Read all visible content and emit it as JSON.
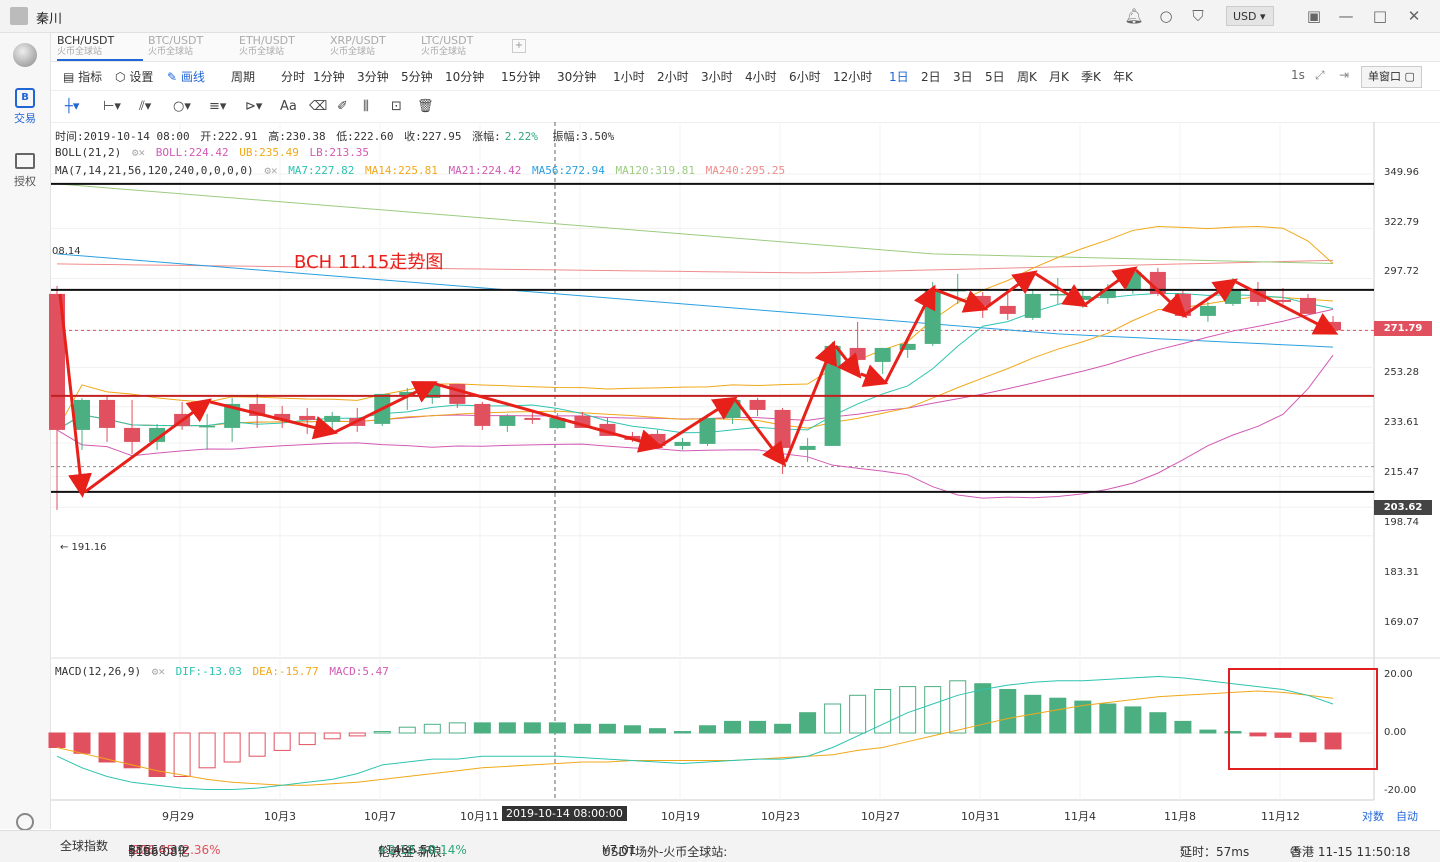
{
  "window": {
    "user": "秦川",
    "currency": "USD"
  },
  "sidebar": {
    "trade": "交易",
    "auth": "授权"
  },
  "tabs": [
    {
      "pair": "BCH/USDT",
      "exchange": "火币全球站",
      "active": true
    },
    {
      "pair": "BTC/USDT",
      "exchange": "火币全球站",
      "active": false
    },
    {
      "pair": "ETH/USDT",
      "exchange": "火币全球站",
      "active": false
    },
    {
      "pair": "XRP/USDT",
      "exchange": "火币全球站",
      "active": false
    },
    {
      "pair": "LTC/USDT",
      "exchange": "火币全球站",
      "active": false
    }
  ],
  "toolbar": {
    "indicator": "指标",
    "settings": "设置",
    "draw": "画线",
    "period": "周期",
    "timeframes": [
      "分时",
      "1分钟",
      "3分钟",
      "5分钟",
      "10分钟",
      "15分钟",
      "30分钟",
      "1小时",
      "2小时",
      "3小时",
      "4小时",
      "6小时",
      "12小时",
      "1日",
      "2日",
      "3日",
      "5日",
      "周K",
      "月K",
      "季K",
      "年K"
    ],
    "active_tf": "1日",
    "right_1s": "1s",
    "window_mode": "单窗口"
  },
  "info_line": {
    "time": "时间:2019-10-14 08:00",
    "open": "开:222.91",
    "high": "高:230.38",
    "low": "低:222.60",
    "close": "收:227.95",
    "change": "涨幅:",
    "change_val": "2.22%",
    "amplitude": "振幅:3.50%"
  },
  "boll_line": {
    "label": "BOLL(21,2)",
    "boll": "BOLL:224.42",
    "ub": "UB:235.49",
    "lb": "LB:213.35"
  },
  "ma_line": {
    "label": "MA(7,14,21,56,120,240,0,0,0,0)",
    "ma7": "MA7:227.82",
    "ma14": "MA14:225.81",
    "ma21": "MA21:224.42",
    "ma56": "MA56:272.94",
    "ma120": "MA120:319.81",
    "ma240": "MA240:295.25"
  },
  "macd_line": {
    "label": "MACD(12,26,9)",
    "dif": "DIF:-13.03",
    "dea": "DEA:-15.77",
    "macd": "MACD:5.47"
  },
  "annotation": {
    "title": "BCH 11.15走势图",
    "left_high": "08.14",
    "left_low": "← 191.16"
  },
  "colors": {
    "up": "#4caf82",
    "down": "#e0505e",
    "ma7": "#2ec4b0",
    "ma14": "#f0a818",
    "ma21": "#d25ab4",
    "ma56": "#2aa0e0",
    "ma120": "#9ccc80",
    "ma240": "#f08c8c",
    "accent": "#2166d6",
    "arrow": "#e8201a",
    "box": "#e02020"
  },
  "price_axis": [
    "349.96",
    "322.79",
    "297.72",
    "271.79",
    "253.28",
    "233.61",
    "215.47",
    "203.62",
    "198.74",
    "183.31",
    "169.07"
  ],
  "price_tags": {
    "current": "271.79",
    "ref": "203.62"
  },
  "macd_axis": [
    "20.00",
    "0.00",
    "-20.00"
  ],
  "x_axis": [
    "9月29",
    "10月3",
    "10月7",
    "10月11",
    "10月19",
    "10月23",
    "10月27",
    "10月31",
    "11月4",
    "11月8",
    "11月12"
  ],
  "crosshair_label": "2019-10-14 08:00:00",
  "x_axis_right": [
    "对数",
    "自动"
  ],
  "status": {
    "index": "全球指数",
    "btc_label": "BTC:",
    "btc_price": "$8556.39",
    "btc_change": "-206.45 -2.36%",
    "btc_vol": "$186.08亿",
    "gold_label": "伦敦金·新浪:",
    "gold_price": "$1466.50",
    "gold_change": "+2.12 +0.14%",
    "usdt_label": "USDT场外-火币全球站:",
    "usdt_price": "¥7.01",
    "latency": "延时：57ms",
    "clock": "香港 11-15 11:50:18"
  },
  "chart_data": {
    "type": "candlestick",
    "title": "BCH 11.15走势图",
    "period": "1日",
    "y_range": [
      160,
      360
    ],
    "candles": [
      {
        "o": 290,
        "h": 294,
        "l": 182,
        "c": 222
      },
      {
        "o": 222,
        "h": 238,
        "l": 212,
        "c": 237
      },
      {
        "o": 237,
        "h": 239,
        "l": 216,
        "c": 223
      },
      {
        "o": 223,
        "h": 237,
        "l": 210,
        "c": 216
      },
      {
        "o": 216,
        "h": 225,
        "l": 212,
        "c": 223
      },
      {
        "o": 230,
        "h": 236,
        "l": 222,
        "c": 224
      },
      {
        "o": 224,
        "h": 230,
        "l": 212,
        "c": 224
      },
      {
        "o": 223,
        "h": 238,
        "l": 216,
        "c": 235
      },
      {
        "o": 235,
        "h": 240,
        "l": 223,
        "c": 229
      },
      {
        "o": 230,
        "h": 234,
        "l": 223,
        "c": 227
      },
      {
        "o": 229,
        "h": 233,
        "l": 220,
        "c": 227
      },
      {
        "o": 226,
        "h": 231,
        "l": 222,
        "c": 229
      },
      {
        "o": 228,
        "h": 233,
        "l": 221,
        "c": 224
      },
      {
        "o": 225,
        "h": 240,
        "l": 224,
        "c": 240
      },
      {
        "o": 239,
        "h": 243,
        "l": 232,
        "c": 241
      },
      {
        "o": 238,
        "h": 246,
        "l": 235,
        "c": 245
      },
      {
        "o": 245,
        "h": 245,
        "l": 233,
        "c": 235
      },
      {
        "o": 235,
        "h": 236,
        "l": 222,
        "c": 224
      },
      {
        "o": 224,
        "h": 230,
        "l": 221,
        "c": 229
      },
      {
        "o": 228,
        "h": 231,
        "l": 225,
        "c": 227
      },
      {
        "o": 222.91,
        "h": 230.38,
        "l": 222.6,
        "c": 227.95
      },
      {
        "o": 229,
        "h": 231,
        "l": 224,
        "c": 223
      },
      {
        "o": 225,
        "h": 228,
        "l": 219,
        "c": 219
      },
      {
        "o": 219,
        "h": 221,
        "l": 216,
        "c": 217
      },
      {
        "o": 220,
        "h": 222,
        "l": 214,
        "c": 214
      },
      {
        "o": 214,
        "h": 218,
        "l": 212,
        "c": 216
      },
      {
        "o": 215,
        "h": 230,
        "l": 214,
        "c": 228
      },
      {
        "o": 228,
        "h": 238,
        "l": 225,
        "c": 237
      },
      {
        "o": 237,
        "h": 238,
        "l": 229,
        "c": 232
      },
      {
        "o": 232,
        "h": 233,
        "l": 200,
        "c": 213
      },
      {
        "o": 212,
        "h": 218,
        "l": 206,
        "c": 214
      },
      {
        "o": 214,
        "h": 266,
        "l": 214,
        "c": 264
      },
      {
        "o": 263,
        "h": 276,
        "l": 251,
        "c": 257
      },
      {
        "o": 256,
        "h": 263,
        "l": 250,
        "c": 263
      },
      {
        "o": 262,
        "h": 268,
        "l": 258,
        "c": 265
      },
      {
        "o": 265,
        "h": 296,
        "l": 264,
        "c": 292
      },
      {
        "o": 292,
        "h": 300,
        "l": 285,
        "c": 292
      },
      {
        "o": 289,
        "h": 291,
        "l": 278,
        "c": 284
      },
      {
        "o": 284,
        "h": 290,
        "l": 277,
        "c": 280
      },
      {
        "o": 278,
        "h": 292,
        "l": 277,
        "c": 290
      },
      {
        "o": 290,
        "h": 298,
        "l": 285,
        "c": 290
      },
      {
        "o": 287,
        "h": 292,
        "l": 283,
        "c": 289
      },
      {
        "o": 288,
        "h": 295,
        "l": 285,
        "c": 292
      },
      {
        "o": 292,
        "h": 302,
        "l": 290,
        "c": 301
      },
      {
        "o": 301,
        "h": 303,
        "l": 289,
        "c": 290
      },
      {
        "o": 290,
        "h": 292,
        "l": 278,
        "c": 279
      },
      {
        "o": 279,
        "h": 286,
        "l": 276,
        "c": 284
      },
      {
        "o": 285,
        "h": 298,
        "l": 284,
        "c": 292
      },
      {
        "o": 292,
        "h": 296,
        "l": 284,
        "c": 286
      },
      {
        "o": 287,
        "h": 293,
        "l": 285,
        "c": 286
      },
      {
        "o": 288,
        "h": 290,
        "l": 281,
        "c": 280
      },
      {
        "o": 276,
        "h": 279,
        "l": 271,
        "c": 271.79
      }
    ],
    "macd_range": [
      -20,
      20
    ],
    "macd_hist": [
      -5,
      -7,
      -10,
      -12,
      -15,
      -15,
      -12,
      -10,
      -8,
      -6,
      -4,
      -2,
      -1,
      0.5,
      2,
      3,
      3.5,
      3.5,
      3.5,
      3.5,
      3.5,
      3,
      3,
      2.5,
      1.5,
      0.5,
      2.5,
      4,
      4,
      3,
      7,
      10,
      13,
      15,
      16,
      16,
      18,
      17,
      15,
      13,
      12,
      11,
      10,
      9,
      7,
      4,
      1,
      0.5,
      -1,
      -1.5,
      -3,
      -5.5
    ],
    "macd_dif": [
      -8,
      -12,
      -15,
      -17,
      -18,
      -19,
      -19.5,
      -19.5,
      -19,
      -18,
      -17,
      -16,
      -14,
      -11,
      -10,
      -9,
      -9,
      -8,
      -8,
      -8,
      -8,
      -8.5,
      -9,
      -9.5,
      -10,
      -10.5,
      -10,
      -9.5,
      -9,
      -9,
      -8,
      -5,
      -1,
      3,
      7,
      10,
      13,
      15,
      16.5,
      17.5,
      18,
      18,
      18.5,
      19,
      19.5,
      19,
      18,
      17,
      16,
      15,
      13,
      10
    ],
    "macd_dea": [
      -5,
      -7,
      -9,
      -11,
      -13,
      -14.5,
      -16,
      -17,
      -17.5,
      -18,
      -18,
      -17.5,
      -17,
      -16,
      -15,
      -14,
      -13,
      -12,
      -11.5,
      -11,
      -10.5,
      -10,
      -10,
      -9.5,
      -9.5,
      -9.5,
      -9.5,
      -9.5,
      -9,
      -8.5,
      -8,
      -7.5,
      -6,
      -5,
      -3,
      -1,
      1,
      3,
      5,
      6.5,
      8,
      9.5,
      10.5,
      11.5,
      12.5,
      13,
      13.5,
      14,
      14.5,
      14,
      13,
      12
    ],
    "horizontal_levels": [
      345,
      292,
      239,
      191
    ]
  }
}
